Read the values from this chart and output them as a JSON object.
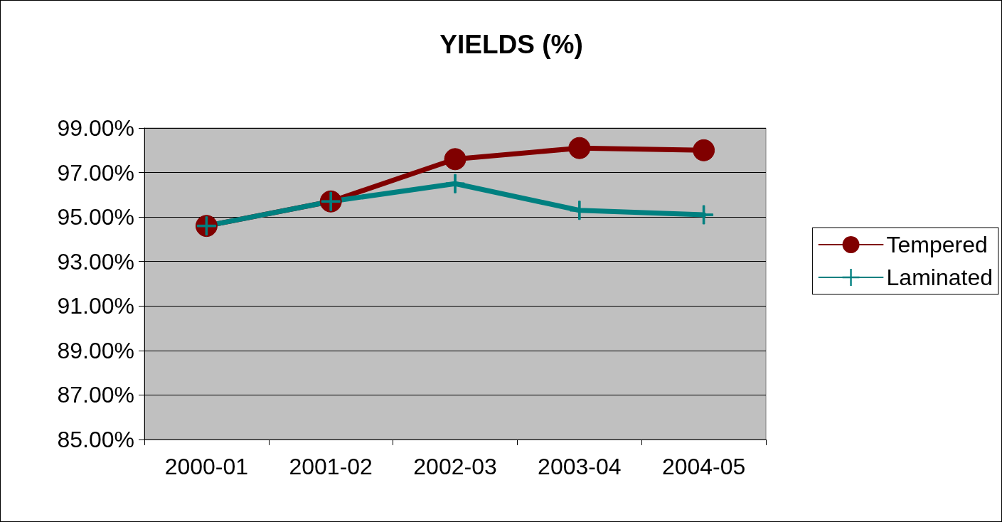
{
  "chart_data": {
    "type": "line",
    "title": "YIELDS (%)",
    "categories": [
      "2000-01",
      "2001-02",
      "2002-03",
      "2003-04",
      "2004-05"
    ],
    "series": [
      {
        "name": "Tempered",
        "color": "#800000",
        "marker": "circle",
        "values": [
          94.6,
          95.7,
          97.6,
          98.1,
          98.0
        ]
      },
      {
        "name": "Laminated",
        "color": "#008080",
        "marker": "cross",
        "values": [
          94.6,
          95.7,
          96.5,
          95.3,
          95.1
        ]
      }
    ],
    "ylim": [
      85,
      99
    ],
    "yticks": [
      {
        "value": 85,
        "label": "85.00%"
      },
      {
        "value": 87,
        "label": "87.00%"
      },
      {
        "value": 89,
        "label": "89.00%"
      },
      {
        "value": 91,
        "label": "91.00%"
      },
      {
        "value": 93,
        "label": "93.00%"
      },
      {
        "value": 95,
        "label": "95.00%"
      },
      {
        "value": 97,
        "label": "97.00%"
      },
      {
        "value": 99,
        "label": "99.00%"
      }
    ],
    "grid": "y",
    "legend": "right",
    "line_style": "solid"
  }
}
